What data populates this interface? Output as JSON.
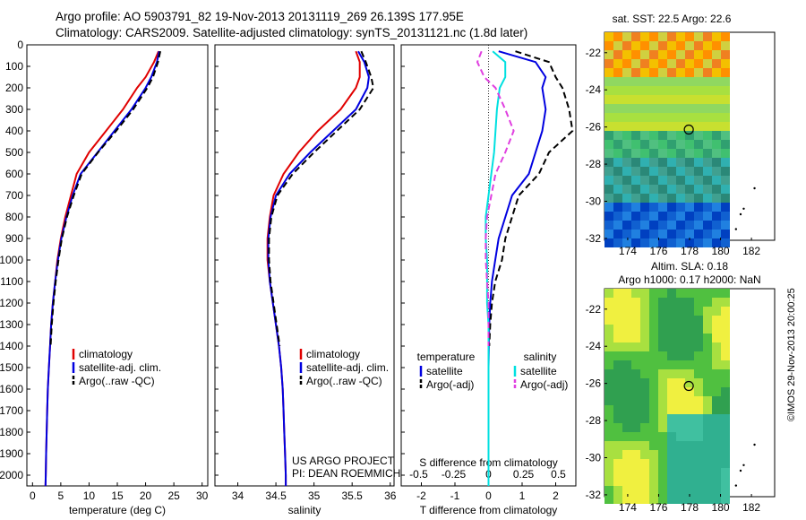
{
  "header": {
    "title_line1": "Argo profile: AO 5903791_82 19-Nov-2013 20131119_269 26.139S 177.95E",
    "title_line2": "Climatology: CARS2009. Satellite-adjusted climatology: synTS_20131121.nc (1.8d later)"
  },
  "footer": {
    "project": "US ARGO PROJECT",
    "pi": "PI: DEAN ROEMMICH",
    "stamp": "©IMOS 29-Nov-2013 20:00:25"
  },
  "maps": {
    "sst_title": "sat. SST: 22.5 Argo: 22.6",
    "sla_title_line1": "Altim. SLA: 0.18",
    "sla_title_line2": "Argo h1000: 0.17 h2000: NaN",
    "lon_ticks": [
      "174",
      "176",
      "178",
      "180",
      "182"
    ],
    "lat_ticks": [
      "-22",
      "-24",
      "-26",
      "-28",
      "-30",
      "-32"
    ]
  },
  "chart_data": [
    {
      "type": "line",
      "name": "temperature",
      "xlabel": "temperature (deg C)",
      "ylabel": "",
      "xlim": [
        -1,
        31
      ],
      "ylim": [
        2050,
        0
      ],
      "xticks": [
        "0",
        "5",
        "10",
        "15",
        "20",
        "25",
        "30"
      ],
      "yticks": [
        "0",
        "100",
        "200",
        "300",
        "400",
        "500",
        "600",
        "700",
        "800",
        "900",
        "1000",
        "1100",
        "1200",
        "1300",
        "1400",
        "1500",
        "1600",
        "1700",
        "1800",
        "1900",
        "2000"
      ],
      "depth": [
        30,
        80,
        150,
        200,
        300,
        400,
        500,
        600,
        700,
        800,
        900,
        1000,
        1100,
        1200,
        1300,
        1400,
        1500,
        1600,
        1700,
        1800,
        1900,
        2000,
        2050
      ],
      "series": [
        {
          "name": "climatology",
          "color": "#e00000",
          "values": [
            22.3,
            21.5,
            20.0,
            18.5,
            16.0,
            13.0,
            10.0,
            7.8,
            6.8,
            5.8,
            5.0,
            4.4,
            4.0,
            3.6,
            3.3,
            3.1,
            2.9,
            2.7,
            2.6,
            2.5,
            2.4,
            2.35,
            2.3
          ]
        },
        {
          "name": "satellite-adj. clim.",
          "color": "#0000e0",
          "values": [
            22.4,
            22.0,
            21.0,
            20.0,
            17.5,
            14.5,
            11.5,
            8.5,
            7.1,
            6.0,
            5.1,
            4.5,
            4.0,
            3.6,
            3.3,
            3.1,
            2.9,
            2.7,
            2.6,
            2.5,
            2.4,
            2.35,
            2.3
          ]
        },
        {
          "name": "Argo(..raw -QC)",
          "color": "#000000",
          "dashed": true,
          "values": [
            22.6,
            22.2,
            21.3,
            20.3,
            17.8,
            14.8,
            11.6,
            8.7,
            7.3,
            6.1,
            5.2,
            4.6,
            4.1,
            3.7,
            3.4,
            3.2
          ]
        }
      ]
    },
    {
      "type": "line",
      "name": "salinity",
      "xlabel": "salinity",
      "ylabel": "",
      "xlim": [
        33.7,
        36.05
      ],
      "ylim": [
        2050,
        0
      ],
      "xticks": [
        "34",
        "34.5",
        "35",
        "35.5",
        "36"
      ],
      "depth": [
        30,
        80,
        150,
        200,
        300,
        400,
        500,
        600,
        700,
        800,
        900,
        1000,
        1100,
        1200,
        1300,
        1400,
        1500,
        1600,
        1700,
        1800,
        1900,
        2000,
        2050
      ],
      "series": [
        {
          "name": "climatology",
          "color": "#e00000",
          "values": [
            35.55,
            35.6,
            35.6,
            35.55,
            35.35,
            35.05,
            34.8,
            34.6,
            34.47,
            34.42,
            34.39,
            34.39,
            34.42,
            34.46,
            34.5,
            34.54,
            34.57,
            34.59,
            34.6,
            34.61,
            34.62,
            34.63,
            34.63
          ]
        },
        {
          "name": "satellite-adj. clim.",
          "color": "#0000e0",
          "values": [
            35.58,
            35.66,
            35.72,
            35.7,
            35.55,
            35.25,
            34.95,
            34.68,
            34.5,
            34.43,
            34.4,
            34.4,
            34.42,
            34.46,
            34.5,
            34.54,
            34.57,
            34.59,
            34.6,
            34.61,
            34.62,
            34.63,
            34.63
          ]
        },
        {
          "name": "Argo(..raw -QC)",
          "color": "#000000",
          "dashed": true,
          "values": [
            35.62,
            35.68,
            35.75,
            35.78,
            35.6,
            35.3,
            35.0,
            34.72,
            34.52,
            34.44,
            34.41,
            34.41,
            34.43,
            34.47,
            34.51,
            34.55
          ]
        }
      ]
    },
    {
      "type": "line",
      "name": "differences",
      "xlabel": "T difference from climatology",
      "xlabel_top": "S difference from climatology",
      "xlim": [
        -2.6,
        2.6
      ],
      "ylim": [
        2050,
        0
      ],
      "xticks": [
        "-2",
        "-1",
        "0",
        "1",
        "2"
      ],
      "xticks_s": [
        "-0.5",
        "-0.25",
        "0",
        "0.25",
        "0.5"
      ],
      "legend_temp_header": "temperature",
      "legend_sal_header": "salinity",
      "depth": [
        30,
        80,
        150,
        200,
        300,
        400,
        500,
        600,
        700,
        800,
        900,
        1000,
        1100,
        1200,
        1300,
        1400,
        1500,
        1600,
        1700,
        1800,
        1900,
        2000,
        2050
      ],
      "series": [
        {
          "name": "satellite",
          "group": "temperature",
          "color": "#0000e0",
          "values": [
            0.3,
            1.4,
            1.7,
            1.6,
            1.7,
            1.6,
            1.4,
            1.2,
            0.7,
            0.5,
            0.3,
            0.2,
            0.1,
            0.05,
            0.02,
            0.01,
            0.0,
            0.0,
            0.0,
            0.0,
            0.0,
            0.0,
            0.0
          ]
        },
        {
          "name": "Argo(-adj)",
          "group": "temperature",
          "color": "#000000",
          "dashed": true,
          "values": [
            0.8,
            1.8,
            2.0,
            2.2,
            2.4,
            2.5,
            1.8,
            1.5,
            0.9,
            0.7,
            0.5,
            0.4,
            0.2,
            0.1,
            0.05,
            0.02
          ]
        },
        {
          "name": "satellite",
          "group": "salinity",
          "color": "#00e0e0",
          "values": [
            0.03,
            0.12,
            0.12,
            0.08,
            0.06,
            0.05,
            0.04,
            0.02,
            0.0,
            -0.02,
            -0.02,
            -0.01,
            -0.01,
            -0.01,
            0.0,
            0.0,
            0.0,
            0.0,
            0.0,
            0.0,
            0.0,
            0.0,
            0.0
          ]
        },
        {
          "name": "Argo(-adj)",
          "group": "salinity",
          "color": "#e040e0",
          "dashed": true,
          "values": [
            -0.05,
            -0.08,
            -0.03,
            0.05,
            0.12,
            0.18,
            0.12,
            0.05,
            0.02,
            -0.01,
            -0.02,
            -0.02,
            -0.01,
            0.0,
            0.0,
            0.0
          ]
        }
      ]
    }
  ]
}
